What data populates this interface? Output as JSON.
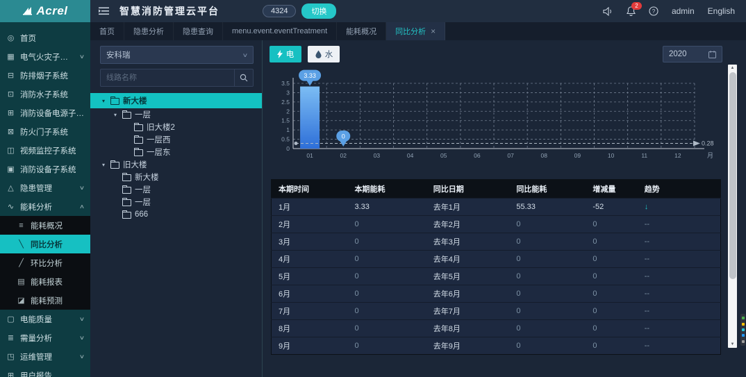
{
  "header": {
    "logo": "Acrel",
    "title": "智慧消防管理云平台",
    "badge": "4324",
    "switch_button": "切换",
    "bell_count": "2",
    "user": "admin",
    "language": "English"
  },
  "tabs": [
    {
      "label": "首页",
      "active": false,
      "closable": false
    },
    {
      "label": "隐患分析",
      "active": false,
      "closable": false
    },
    {
      "label": "隐患查询",
      "active": false,
      "closable": false
    },
    {
      "label": "menu.event.eventTreatment",
      "active": false,
      "closable": false
    },
    {
      "label": "能耗概况",
      "active": false,
      "closable": false
    },
    {
      "label": "同比分析",
      "active": true,
      "closable": true
    }
  ],
  "sidebar": {
    "items": [
      {
        "label": "首页",
        "icon": "home-icon",
        "chevron": ""
      },
      {
        "label": "电气火灾子系统",
        "icon": "electric-fire-icon",
        "chevron": "down"
      },
      {
        "label": "防排烟子系统",
        "icon": "smoke-control-icon",
        "chevron": ""
      },
      {
        "label": "消防水子系统",
        "icon": "fire-water-icon",
        "chevron": ""
      },
      {
        "label": "消防设备电源子系统",
        "icon": "equipment-power-icon",
        "chevron": ""
      },
      {
        "label": "防火门子系统",
        "icon": "fire-door-icon",
        "chevron": ""
      },
      {
        "label": "视频监控子系统",
        "icon": "video-monitor-icon",
        "chevron": ""
      },
      {
        "label": "消防设备子系统",
        "icon": "fire-equipment-icon",
        "chevron": ""
      },
      {
        "label": "隐患管理",
        "icon": "hazard-manage-icon",
        "chevron": "down"
      },
      {
        "label": "能耗分析",
        "icon": "energy-analysis-icon",
        "chevron": "up",
        "children": [
          {
            "label": "能耗概况",
            "icon": "energy-overview-icon",
            "active": false
          },
          {
            "label": "同比分析",
            "icon": "yoy-analysis-icon",
            "active": true
          },
          {
            "label": "环比分析",
            "icon": "mom-analysis-icon",
            "active": false
          },
          {
            "label": "能耗报表",
            "icon": "energy-report-icon",
            "active": false
          },
          {
            "label": "能耗预测",
            "icon": "energy-forecast-icon",
            "active": false
          }
        ]
      },
      {
        "label": "电能质量",
        "icon": "power-quality-icon",
        "chevron": "down"
      },
      {
        "label": "需量分析",
        "icon": "demand-analysis-icon",
        "chevron": "down"
      },
      {
        "label": "运维管理",
        "icon": "ops-manage-icon",
        "chevron": "down"
      },
      {
        "label": "用户报告",
        "icon": "user-report-icon",
        "chevron": ""
      }
    ]
  },
  "tree_panel": {
    "company_select": "安科瑞",
    "search_placeholder": "线路名称",
    "nodes": [
      {
        "label": "新大楼",
        "depth": 0,
        "arrow": true,
        "selected": true
      },
      {
        "label": "一层",
        "depth": 1,
        "arrow": true,
        "selected": false
      },
      {
        "label": "旧大楼2",
        "depth": 2,
        "arrow": false,
        "selected": false
      },
      {
        "label": "一层西",
        "depth": 2,
        "arrow": false,
        "selected": false
      },
      {
        "label": "一层东",
        "depth": 2,
        "arrow": false,
        "selected": false
      },
      {
        "label": "旧大楼",
        "depth": 0,
        "arrow": true,
        "selected": false
      },
      {
        "label": "新大楼",
        "depth": 1,
        "arrow": false,
        "selected": false
      },
      {
        "label": "一层",
        "depth": 1,
        "arrow": false,
        "selected": false
      },
      {
        "label": "一层",
        "depth": 1,
        "arrow": false,
        "selected": false
      },
      {
        "label": "666",
        "depth": 1,
        "arrow": false,
        "selected": false
      }
    ]
  },
  "toolbar": {
    "electric_label": "电",
    "water_label": "水",
    "year": "2020"
  },
  "chart_data": {
    "type": "bar",
    "categories": [
      "01",
      "02",
      "03",
      "04",
      "05",
      "06",
      "07",
      "08",
      "09",
      "10",
      "11",
      "12"
    ],
    "values": [
      3.33,
      0,
      0,
      0,
      0,
      0,
      0,
      0,
      0,
      0,
      0,
      0
    ],
    "y_ticks": [
      0,
      0.5,
      1,
      1.5,
      2,
      2.5,
      3,
      3.5
    ],
    "ylim": [
      0,
      3.5
    ],
    "xlabel": "月",
    "ylabel": "",
    "grid": "dashed",
    "point_labels": [
      {
        "index": 0,
        "value": "3.33"
      },
      {
        "index": 1,
        "value": "0"
      }
    ],
    "average_line": {
      "value": 0.28,
      "label": "0.28"
    },
    "bar_color_top": "#7cbdf4",
    "bar_color_bottom": "#2e6fd8",
    "marker_color": "#5ba0e5"
  },
  "table": {
    "headers": [
      "本期时间",
      "本期能耗",
      "同比日期",
      "同比能耗",
      "增减量",
      "趋势"
    ],
    "rows": [
      [
        "1月",
        "3.33",
        "去年1月",
        "55.33",
        "-52",
        "↓"
      ],
      [
        "2月",
        "0",
        "去年2月",
        "0",
        "0",
        "--"
      ],
      [
        "3月",
        "0",
        "去年3月",
        "0",
        "0",
        "--"
      ],
      [
        "4月",
        "0",
        "去年4月",
        "0",
        "0",
        "--"
      ],
      [
        "5月",
        "0",
        "去年5月",
        "0",
        "0",
        "--"
      ],
      [
        "6月",
        "0",
        "去年6月",
        "0",
        "0",
        "--"
      ],
      [
        "7月",
        "0",
        "去年7月",
        "0",
        "0",
        "--"
      ],
      [
        "8月",
        "0",
        "去年8月",
        "0",
        "0",
        "--"
      ],
      [
        "9月",
        "0",
        "去年9月",
        "0",
        "0",
        "--"
      ]
    ]
  },
  "colors": {
    "accent_teal": "#17c0c2",
    "bar_blue": "#3f82e0",
    "danger_red": "#e23b3b"
  }
}
